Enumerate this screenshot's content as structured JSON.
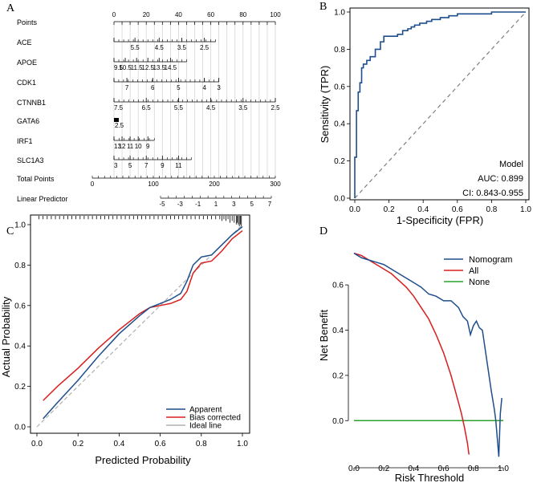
{
  "panels": {
    "A": {
      "letter": "A",
      "chart_type": "nomogram",
      "rows": [
        {
          "label": "Points",
          "ticks_major": [
            "0",
            "20",
            "40",
            "60",
            "80",
            "100"
          ],
          "minor_values": [
            0,
            5,
            10,
            15,
            20,
            25,
            30,
            35,
            40,
            45,
            50,
            55,
            60,
            65,
            70,
            75,
            80,
            85,
            90,
            95,
            100
          ],
          "domain": [
            0,
            100
          ],
          "labels_above": true
        },
        {
          "label": "ACE",
          "domain": [
            0,
            63
          ],
          "ticks": [
            {
              "v": 0,
              "label": ""
            },
            {
              "v": 13,
              "label": "5.5"
            },
            {
              "v": 28,
              "label": "4.5"
            },
            {
              "v": 42,
              "label": "3.5"
            },
            {
              "v": 56,
              "label": "2.5"
            }
          ]
        },
        {
          "label": "APOE",
          "domain": [
            0,
            45
          ],
          "ticks": [
            {
              "v": 0,
              "label": "9.5"
            },
            {
              "v": 7,
              "label": "10.5"
            },
            {
              "v": 14,
              "label": "11.5"
            },
            {
              "v": 21,
              "label": "12.5"
            },
            {
              "v": 28,
              "label": "13.5"
            },
            {
              "v": 35,
              "label": "14.5"
            }
          ]
        },
        {
          "label": "CDK1",
          "domain": [
            0,
            65
          ],
          "ticks": [
            {
              "v": 0,
              "label": ""
            },
            {
              "v": 8,
              "label": "7"
            },
            {
              "v": 24,
              "label": "6"
            },
            {
              "v": 40,
              "label": "5"
            },
            {
              "v": 56,
              "label": "4"
            },
            {
              "v": 65,
              "label": "3"
            }
          ]
        },
        {
          "label": "CTNNB1",
          "domain": [
            0,
            100
          ],
          "ticks": [
            {
              "v": 0,
              "label": "7.5"
            },
            {
              "v": 20,
              "label": "6.5"
            },
            {
              "v": 40,
              "label": "5.5"
            },
            {
              "v": 60,
              "label": "4.5"
            },
            {
              "v": 80,
              "label": "3.5"
            },
            {
              "v": 100,
              "label": "2.5"
            }
          ]
        },
        {
          "label": "GATA6",
          "domain": [
            0,
            2
          ],
          "ticks": [
            {
              "v": 0,
              "label": "2.5"
            }
          ]
        },
        {
          "label": "IRF1",
          "domain": [
            0,
            25
          ],
          "ticks": [
            {
              "v": 0,
              "label": "13"
            },
            {
              "v": 5,
              "label": "12"
            },
            {
              "v": 10,
              "label": "11"
            },
            {
              "v": 15,
              "label": "10"
            },
            {
              "v": 21,
              "label": "9"
            }
          ]
        },
        {
          "label": "SLC1A3",
          "domain": [
            0,
            48
          ],
          "ticks": [
            {
              "v": 0,
              "label": "3"
            },
            {
              "v": 10,
              "label": "5"
            },
            {
              "v": 20,
              "label": "7"
            },
            {
              "v": 30,
              "label": "9"
            },
            {
              "v": 40,
              "label": "11"
            }
          ]
        },
        {
          "label": "Total Points",
          "ticks_major": [
            "0",
            "100",
            "200",
            "300"
          ],
          "domain": [
            0,
            300
          ]
        },
        {
          "label": "Linear Predictor",
          "ticks": [
            "-5",
            "-3",
            "-1",
            "1",
            "3",
            "5",
            "7"
          ]
        }
      ]
    },
    "B": {
      "letter": "B",
      "chart_type": "line",
      "xlabel": "1-Specificity (FPR)",
      "ylabel": "Sensitivity (TPR)",
      "xlim": [
        0,
        1
      ],
      "ylim": [
        0,
        1
      ],
      "xticks": [
        "0.0",
        "0.2",
        "0.4",
        "0.6",
        "0.8",
        "1.0"
      ],
      "yticks": [
        "0.0",
        "0.2",
        "0.4",
        "0.6",
        "0.8",
        "1.0"
      ],
      "legend_title": "Model",
      "auc_text": "AUC: 0.899",
      "ci_text": "CI: 0.843-0.955",
      "roc_x": [
        0,
        0,
        0.01,
        0.01,
        0.02,
        0.02,
        0.03,
        0.03,
        0.04,
        0.04,
        0.05,
        0.05,
        0.07,
        0.07,
        0.09,
        0.09,
        0.12,
        0.12,
        0.15,
        0.15,
        0.17,
        0.17,
        0.22,
        0.22,
        0.25,
        0.25,
        0.28,
        0.28,
        0.31,
        0.31,
        0.33,
        0.33,
        0.35,
        0.35,
        0.38,
        0.38,
        0.42,
        0.42,
        0.45,
        0.45,
        0.5,
        0.5,
        0.55,
        0.55,
        0.6,
        0.6,
        0.7,
        0.7,
        0.8,
        0.8,
        0.9,
        0.9,
        1
      ],
      "roc_y": [
        0,
        0.22,
        0.22,
        0.47,
        0.47,
        0.57,
        0.57,
        0.62,
        0.62,
        0.7,
        0.7,
        0.72,
        0.72,
        0.74,
        0.74,
        0.76,
        0.76,
        0.8,
        0.8,
        0.84,
        0.84,
        0.87,
        0.87,
        0.87,
        0.87,
        0.88,
        0.88,
        0.9,
        0.9,
        0.91,
        0.91,
        0.92,
        0.92,
        0.93,
        0.93,
        0.94,
        0.94,
        0.95,
        0.95,
        0.96,
        0.96,
        0.97,
        0.97,
        0.98,
        0.98,
        0.99,
        0.99,
        0.99,
        0.99,
        1.0,
        1.0,
        1.0,
        1.0
      ],
      "colors": {
        "roc": "#1f4e8c",
        "ref": "#7f7f7f"
      }
    },
    "C": {
      "letter": "C",
      "chart_type": "line",
      "xlabel": "Predicted Probability",
      "ylabel": "Actual Probability",
      "xlim": [
        0,
        1
      ],
      "ylim": [
        0,
        1
      ],
      "xticks": [
        "0.0",
        "0.2",
        "0.4",
        "0.6",
        "0.8",
        "1.0"
      ],
      "yticks": [
        "0.0",
        "0.2",
        "0.4",
        "0.6",
        "0.8",
        "1.0"
      ],
      "series": [
        {
          "name": "Apparent",
          "color": "#1f4e8c",
          "x": [
            0.03,
            0.1,
            0.2,
            0.3,
            0.4,
            0.5,
            0.55,
            0.6,
            0.65,
            0.7,
            0.73,
            0.76,
            0.8,
            0.85,
            0.9,
            0.95,
            1.0
          ],
          "y": [
            0.04,
            0.12,
            0.23,
            0.35,
            0.46,
            0.55,
            0.59,
            0.61,
            0.63,
            0.66,
            0.72,
            0.8,
            0.84,
            0.85,
            0.9,
            0.95,
            0.99
          ]
        },
        {
          "name": "Bias corrected",
          "color": "#d81e1e",
          "x": [
            0.03,
            0.1,
            0.2,
            0.3,
            0.4,
            0.5,
            0.55,
            0.6,
            0.65,
            0.7,
            0.73,
            0.76,
            0.8,
            0.85,
            0.9,
            0.95,
            1.0
          ],
          "y": [
            0.13,
            0.2,
            0.29,
            0.39,
            0.48,
            0.56,
            0.59,
            0.6,
            0.61,
            0.63,
            0.67,
            0.76,
            0.81,
            0.82,
            0.87,
            0.93,
            0.97
          ]
        },
        {
          "name": "Ideal line",
          "color": "#b0b0b0",
          "x": [
            0,
            1
          ],
          "y": [
            0,
            1
          ]
        }
      ],
      "rug_x": [
        0.01,
        0.03,
        0.05,
        0.07,
        0.09,
        0.11,
        0.13,
        0.15,
        0.17,
        0.19,
        0.21,
        0.23,
        0.25,
        0.27,
        0.29,
        0.31,
        0.33,
        0.35,
        0.37,
        0.39,
        0.41,
        0.43,
        0.45,
        0.47,
        0.49,
        0.51,
        0.53,
        0.55,
        0.57,
        0.59,
        0.61,
        0.63,
        0.65,
        0.67,
        0.69,
        0.71,
        0.73,
        0.75,
        0.77,
        0.79,
        0.81,
        0.83,
        0.85,
        0.87,
        0.89,
        0.9,
        0.91,
        0.92,
        0.93,
        0.94,
        0.95,
        0.96,
        0.97,
        0.975,
        0.98,
        0.985,
        0.99,
        0.995
      ],
      "rug_len": [
        1,
        1,
        1,
        1,
        1,
        1,
        1,
        1,
        1,
        1,
        1,
        1,
        1,
        1,
        1,
        1,
        1,
        1,
        1,
        1,
        1,
        1,
        1,
        1,
        1,
        1,
        1,
        1,
        1,
        1,
        1,
        1,
        1,
        1,
        1,
        1,
        1,
        1,
        1,
        1,
        1,
        1,
        1,
        1,
        1,
        2,
        1,
        2,
        1,
        3,
        2,
        3,
        4,
        3,
        4,
        5,
        4,
        5
      ],
      "legend": [
        "Apparent",
        "Bias corrected",
        "Ideal line"
      ]
    },
    "D": {
      "letter": "D",
      "chart_type": "line",
      "xlabel": "Risk Threshold",
      "ylabel": "Net Benefit",
      "xlim": [
        0,
        1
      ],
      "ylim": [
        -0.18,
        0.76
      ],
      "xticks": [
        "0.0",
        "0.2",
        "0.4",
        "0.6",
        "0.8",
        "1.0"
      ],
      "yticks": [
        "0.0",
        "0.2",
        "0.4",
        "0.6"
      ],
      "yticks_values": [
        0,
        0.2,
        0.4,
        0.6
      ],
      "series": [
        {
          "name": "Nomogram",
          "color": "#1f4e8c",
          "x": [
            0,
            0.05,
            0.1,
            0.15,
            0.2,
            0.25,
            0.3,
            0.35,
            0.4,
            0.45,
            0.5,
            0.55,
            0.6,
            0.65,
            0.7,
            0.73,
            0.76,
            0.78,
            0.8,
            0.82,
            0.84,
            0.86,
            0.88,
            0.9,
            0.92,
            0.94,
            0.95,
            0.96,
            0.97,
            0.98,
            0.99
          ],
          "y": [
            0.74,
            0.72,
            0.71,
            0.7,
            0.69,
            0.67,
            0.65,
            0.63,
            0.61,
            0.59,
            0.56,
            0.55,
            0.53,
            0.53,
            0.5,
            0.46,
            0.44,
            0.38,
            0.42,
            0.44,
            0.41,
            0.4,
            0.31,
            0.22,
            0.13,
            0.05,
            0.0,
            -0.08,
            -0.16,
            0.03,
            0.1
          ]
        },
        {
          "name": "All",
          "color": "#d81e1e",
          "x": [
            0,
            0.05,
            0.1,
            0.15,
            0.2,
            0.25,
            0.3,
            0.35,
            0.4,
            0.45,
            0.5,
            0.55,
            0.6,
            0.65,
            0.7,
            0.72,
            0.74,
            0.76,
            0.77
          ],
          "y": [
            0.74,
            0.73,
            0.71,
            0.69,
            0.67,
            0.65,
            0.62,
            0.59,
            0.55,
            0.5,
            0.45,
            0.38,
            0.3,
            0.2,
            0.08,
            0.03,
            -0.03,
            -0.1,
            -0.15
          ]
        },
        {
          "name": "None",
          "color": "#2ca02c",
          "x": [
            0,
            1
          ],
          "y": [
            0,
            0
          ]
        }
      ],
      "legend": [
        "Nomogram",
        "All",
        "None"
      ]
    }
  }
}
